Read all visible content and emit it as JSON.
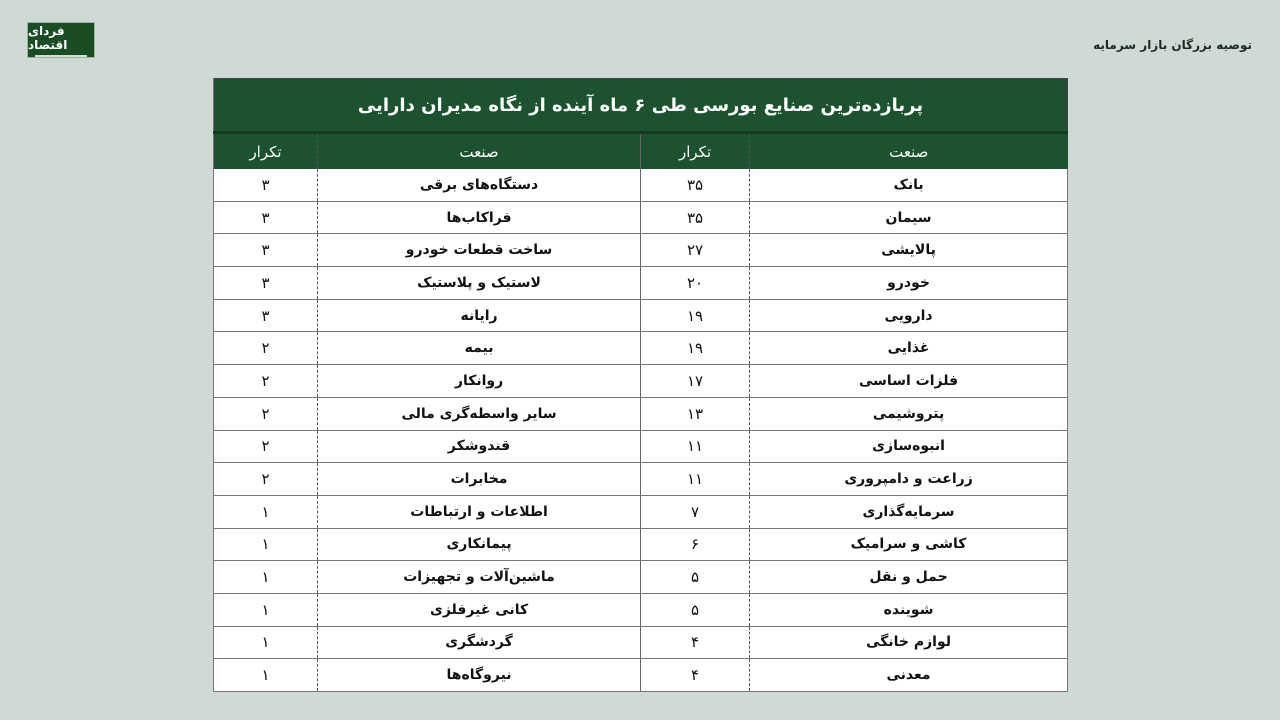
{
  "brand": {
    "logo_text": "فردای اقتصاد",
    "color": "#1d5230"
  },
  "header": {
    "section_label": "توصیه بزرگان بازار سرمایه"
  },
  "table": {
    "title": "پربازده‌ترین صنایع بورسی طی ۶ ماه آینده از نگاه مدیران دارایی",
    "columns": [
      "صنعت",
      "تکرار",
      "صنعت",
      "تکرار"
    ],
    "rows": [
      [
        "بانک",
        "۳۵",
        "دستگاه‌های برقی",
        "۳"
      ],
      [
        "سیمان",
        "۳۵",
        "فراکاب‌ها",
        "۳"
      ],
      [
        "پالایشی",
        "۲۷",
        "ساخت قطعات خودرو",
        "۳"
      ],
      [
        "خودرو",
        "۲۰",
        "لاستیک و پلاستیک",
        "۳"
      ],
      [
        "دارویی",
        "۱۹",
        "رایانه",
        "۳"
      ],
      [
        "غذایی",
        "۱۹",
        "بیمه",
        "۲"
      ],
      [
        "فلزات اساسی",
        "۱۷",
        "روانکار",
        "۲"
      ],
      [
        "پتروشیمی",
        "۱۳",
        "سایر واسطه‌گری مالی",
        "۲"
      ],
      [
        "انبوه‌سازی",
        "۱۱",
        "قندوشکر",
        "۲"
      ],
      [
        "زراعت و دامپروری",
        "۱۱",
        "مخابرات",
        "۲"
      ],
      [
        "سرمایه‌گذاری",
        "۷",
        "اطلاعات و ارتباطات",
        "۱"
      ],
      [
        "کاشی و سرامیک",
        "۶",
        "پیمانکاری",
        "۱"
      ],
      [
        "حمل و نقل",
        "۵",
        "ماشین‌آلات و تجهیزات",
        "۱"
      ],
      [
        "شوینده",
        "۵",
        "کانی غیرفلزی",
        "۱"
      ],
      [
        "لوازم خانگی",
        "۴",
        "گردشگری",
        "۱"
      ],
      [
        "معدنی",
        "۴",
        "نیروگاه‌ها",
        "۱"
      ]
    ]
  }
}
